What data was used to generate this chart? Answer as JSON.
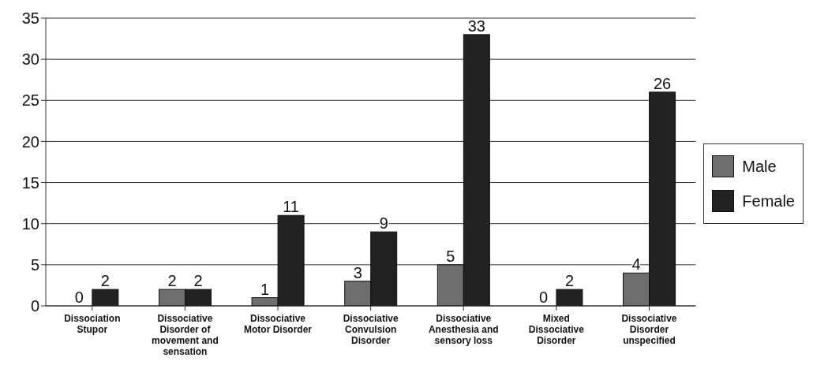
{
  "chart_data": {
    "type": "bar",
    "categories": [
      "Dissociation Stupor",
      "Dissociative Disorder of movement and sensation",
      "Dissociative Motor Disorder",
      "Dissociative Convulsion Disorder",
      "Dissociative Anesthesia and sensory loss",
      "Mixed Dissociative Disorder",
      "Dissociative Disorder unspecified"
    ],
    "series": [
      {
        "name": "Male",
        "color": "#6e6e6e",
        "values": [
          0,
          2,
          1,
          3,
          5,
          0,
          4
        ]
      },
      {
        "name": "Female",
        "color": "#222222",
        "values": [
          2,
          2,
          11,
          9,
          33,
          2,
          26
        ]
      }
    ],
    "ylim": [
      0,
      35
    ],
    "yticks": [
      0,
      5,
      10,
      15,
      20,
      25,
      30,
      35
    ],
    "grid": "y",
    "legend": "right",
    "data_labels": true
  }
}
